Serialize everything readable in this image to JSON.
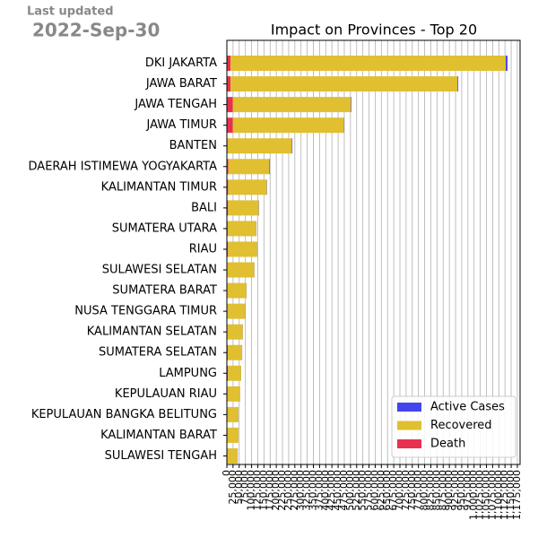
{
  "last_updated": {
    "label": "Last updated",
    "date": "2022-Sep-30"
  },
  "chart_data": {
    "type": "stacked_barh",
    "title": "Impact on Provinces - Top 20",
    "categories": [
      "DKI JAKARTA",
      "JAWA BARAT",
      "JAWA TENGAH",
      "JAWA TIMUR",
      "BANTEN",
      "DAERAH ISTIMEWA YOGYAKARTA",
      "KALIMANTAN TIMUR",
      "BALI",
      "SUMATERA UTARA",
      "RIAU",
      "SULAWESI SELATAN",
      "SUMATERA BARAT",
      "NUSA TENGGARA TIMUR",
      "KALIMANTAN SELATAN",
      "SUMATERA SELATAN",
      "LAMPUNG",
      "KEPULAUAN RIAU",
      "KEPULAUAN BANGKA BELITUNG",
      "KALIMANTAN BARAT",
      "SULAWESI TENGAH"
    ],
    "series": [
      {
        "name": "Death",
        "color": "#e8304f",
        "values": [
          15000,
          15000,
          24000,
          24000,
          3000,
          6000,
          5000,
          4700,
          3300,
          4500,
          2500,
          2400,
          1500,
          2500,
          3300,
          4200,
          1800,
          1600,
          800,
          1600
        ]
      },
      {
        "name": "Recovered",
        "color": "#e0bf30",
        "values": [
          1113000,
          918000,
          478000,
          450000,
          260000,
          166000,
          157000,
          125000,
          116000,
          118000,
          109000,
          77000,
          74000,
          62000,
          58000,
          53500,
          52000,
          45000,
          46000,
          42000
        ]
      },
      {
        "name": "Active Cases",
        "color": "#4545ee",
        "values": [
          7000,
          3000,
          2000,
          1000,
          2000,
          2000,
          1000,
          900,
          700,
          500,
          500,
          600,
          500,
          500,
          700,
          300,
          200,
          400,
          200,
          400
        ]
      }
    ],
    "legend_order": [
      2,
      1,
      0
    ],
    "legend": "lower right",
    "grid": true,
    "xlim": [
      0,
      1186000
    ],
    "xticks": [
      0,
      {
        "value": 25000,
        "label": "25,000"
      },
      {
        "value": 50000,
        "label": "50,000"
      },
      {
        "value": 75000,
        "label": "75,000"
      },
      {
        "value": 100000,
        "label": "100,000"
      },
      {
        "value": 125000,
        "label": "125,000"
      },
      {
        "value": 150000,
        "label": "150,000"
      },
      {
        "value": 175000,
        "label": "175,000"
      },
      {
        "value": 200000,
        "label": "200,000"
      },
      {
        "value": 225000,
        "label": "225,000"
      },
      {
        "value": 250000,
        "label": "250,000"
      },
      {
        "value": 275000,
        "label": "275,000"
      },
      {
        "value": 300000,
        "label": "300,000"
      },
      {
        "value": 325000,
        "label": "325,000"
      },
      {
        "value": 350000,
        "label": "350,000"
      },
      {
        "value": 375000,
        "label": "375,000"
      },
      {
        "value": 400000,
        "label": "400,000"
      },
      {
        "value": 425000,
        "label": "425,000"
      },
      {
        "value": 450000,
        "label": "450,000"
      },
      {
        "value": 475000,
        "label": "475,000"
      },
      {
        "value": 500000,
        "label": "500,000"
      },
      {
        "value": 525000,
        "label": "525,000"
      },
      {
        "value": 550000,
        "label": "550,000"
      },
      {
        "value": 575000,
        "label": "575,000"
      },
      {
        "value": 600000,
        "label": "600,000"
      },
      {
        "value": 625000,
        "label": "625,000"
      },
      {
        "value": 650000,
        "label": "650,000"
      },
      {
        "value": 675000,
        "label": "675,000"
      },
      {
        "value": 700000,
        "label": "700,000"
      },
      {
        "value": 725000,
        "label": "725,000"
      },
      {
        "value": 750000,
        "label": "750,000"
      },
      {
        "value": 775000,
        "label": "775,000"
      },
      {
        "value": 800000,
        "label": "800,000"
      },
      {
        "value": 825000,
        "label": "825,000"
      },
      {
        "value": 850000,
        "label": "850,000"
      },
      {
        "value": 875000,
        "label": "875,000"
      },
      {
        "value": 900000,
        "label": "900,000"
      },
      {
        "value": 925000,
        "label": "925,000"
      },
      {
        "value": 950000,
        "label": "950,000"
      },
      {
        "value": 975000,
        "label": "975,000"
      },
      {
        "value": 1000000,
        "label": "1,000,000"
      },
      {
        "value": 1025000,
        "label": "1,025,000"
      },
      {
        "value": 1050000,
        "label": "1,050,000"
      },
      {
        "value": 1075000,
        "label": "1,075,000"
      },
      {
        "value": 1100000,
        "label": "1,100,000"
      },
      {
        "value": 1125000,
        "label": "1,125,000"
      },
      {
        "value": 1150000,
        "label": "1,150,000"
      },
      {
        "value": 1175000,
        "label": "1,175,000"
      }
    ]
  }
}
